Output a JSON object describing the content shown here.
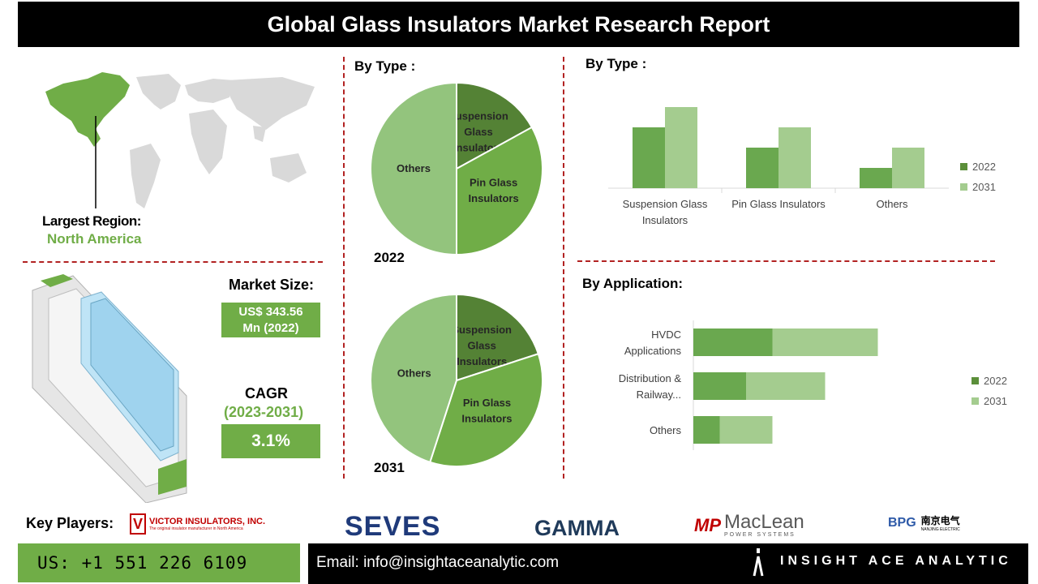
{
  "header": {
    "title": "Global Glass Insulators Market Research Report"
  },
  "region": {
    "label": "Largest Region:",
    "value": "North America"
  },
  "market": {
    "size_label": "Market Size:",
    "size_value": "US$ 343.56 Mn (2022)",
    "cagr_label": "CAGR",
    "cagr_period": "(2023-2031)",
    "cagr_value": "3.1%"
  },
  "pies": {
    "title": "By Type :",
    "year_2022": "2022",
    "year_2031": "2031"
  },
  "type_bar": {
    "title": "By Type :"
  },
  "app_bar": {
    "title": "By Application:"
  },
  "colors": {
    "dark_green": "#5b8f3a",
    "mid_green": "#6aa84f",
    "light_green": "#a4cc8f",
    "pie_dark": "#548235",
    "pie_mid": "#70ad47",
    "pie_light": "#93c47d",
    "accent_red": "#b22222"
  },
  "chart_data": [
    {
      "type": "pie",
      "year": "2022",
      "labels": [
        "Suspension Glass Insulators",
        "Pin Glass Insulators",
        "Others"
      ],
      "values": [
        17,
        33,
        50
      ]
    },
    {
      "type": "pie",
      "year": "2031",
      "labels": [
        "Suspension Glass Insulators",
        "Pin Glass Insulators",
        "Others"
      ],
      "values": [
        20,
        35,
        45
      ]
    },
    {
      "type": "bar",
      "categories": [
        "Suspension Glass Insulators",
        "Pin Glass Insulators",
        "Others"
      ],
      "series": [
        {
          "name": "2022",
          "values": [
            3,
            2,
            1
          ]
        },
        {
          "name": "2031",
          "values": [
            4,
            3,
            2
          ]
        }
      ],
      "legend": "right"
    },
    {
      "type": "bar",
      "orientation": "horizontal",
      "stacked": true,
      "categories": [
        "HVDC Applications",
        "Distribution & Railway...",
        "Others"
      ],
      "series": [
        {
          "name": "2022",
          "values": [
            3,
            2,
            1
          ]
        },
        {
          "name": "2031",
          "values": [
            4,
            3,
            2
          ]
        }
      ],
      "legend": "right"
    }
  ],
  "players": {
    "label": "Key Players:",
    "victor": "VICTOR INSULATORS, INC.",
    "victor_tag": "The original insulator manufacturer in North America",
    "seves": "SEVES",
    "gamma": "GAMMA",
    "maclean": "MacLean",
    "maclean_sub": "POWER SYSTEMS",
    "bpg": "BPG",
    "bpg_cn": "南京电气",
    "bpg_en": "NANJING ELECTRIC"
  },
  "footer": {
    "phone": "US: +1 551 226 6109",
    "email": "Email: info@insightaceanalytic.com",
    "brand": "INSIGHT ACE ANALYTIC"
  }
}
